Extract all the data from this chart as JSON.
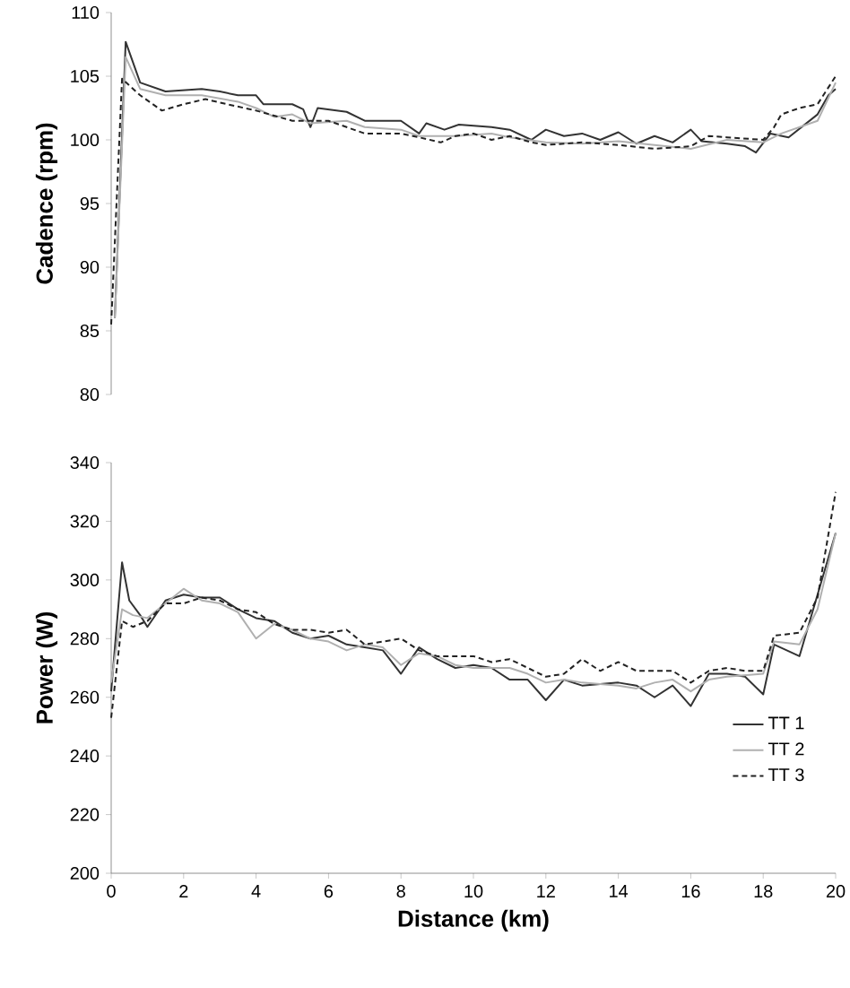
{
  "chart_data": [
    {
      "type": "line",
      "ylabel": "Cadence (rpm)",
      "xlim": [
        0,
        20
      ],
      "ylim": [
        80,
        110
      ],
      "yticks": [
        80,
        85,
        90,
        95,
        100,
        105,
        110
      ],
      "tick_labels": "y",
      "marker": "none",
      "series": [
        {
          "color": "#333333",
          "line_style": "solid",
          "x": [
            0.1,
            0.4,
            0.8,
            1.5,
            2.5,
            3,
            3.5,
            4,
            4.2,
            5,
            5.3,
            5.5,
            5.7,
            6.5,
            7,
            8,
            8.5,
            8.7,
            9.2,
            9.6,
            10.5,
            11,
            11.6,
            12,
            12.5,
            13,
            13.5,
            14,
            14.5,
            15,
            15.5,
            16,
            16.3,
            17,
            17.5,
            17.8,
            18.2,
            18.7,
            19.5,
            19.8,
            20
          ],
          "values": [
            86,
            107.7,
            104.5,
            103.8,
            104,
            103.8,
            103.5,
            103.5,
            102.8,
            102.8,
            102.4,
            101,
            102.5,
            102.2,
            101.5,
            101.5,
            100.5,
            101.3,
            100.8,
            101.2,
            101,
            100.8,
            100,
            100.8,
            100.3,
            100.5,
            100,
            100.6,
            99.7,
            100.3,
            99.8,
            100.8,
            99.9,
            99.7,
            99.5,
            99,
            100.5,
            100.2,
            102,
            103.5,
            104
          ]
        },
        {
          "color": "#b0b0b0",
          "line_style": "solid",
          "x": [
            0.1,
            0.4,
            0.8,
            1.5,
            2.5,
            3.5,
            4,
            4.5,
            5,
            5.5,
            6.5,
            7,
            8,
            8.5,
            9.5,
            10.5,
            11,
            12,
            13,
            14,
            15,
            16,
            17,
            18,
            18.5,
            19.5,
            20
          ],
          "values": [
            86,
            106.5,
            104,
            103.5,
            103.5,
            103,
            102.5,
            101.8,
            102,
            101.3,
            101.5,
            101,
            100.8,
            100.3,
            100.3,
            100.5,
            100.2,
            99.8,
            99.7,
            99.9,
            99.6,
            99.3,
            100,
            99.8,
            100.5,
            101.5,
            104.5
          ]
        },
        {
          "color": "#222222",
          "line_style": "dashed",
          "x": [
            0,
            0.3,
            0.8,
            1.4,
            2,
            2.6,
            3.2,
            4,
            5,
            6,
            7,
            8,
            8.5,
            9.1,
            9.5,
            10,
            10.5,
            11,
            11.6,
            12,
            13,
            14,
            15,
            16,
            16.5,
            17,
            18,
            18.3,
            18.5,
            19,
            19.5,
            20
          ],
          "values": [
            85.5,
            104.8,
            103.5,
            102.3,
            102.8,
            103.2,
            102.8,
            102.3,
            101.5,
            101.5,
            100.5,
            100.5,
            100.2,
            99.8,
            100.3,
            100.5,
            100,
            100.3,
            99.8,
            99.6,
            99.8,
            99.6,
            99.3,
            99.5,
            100.3,
            100.2,
            100,
            101,
            102,
            102.5,
            102.8,
            105
          ]
        }
      ]
    },
    {
      "type": "line",
      "xlabel": "Distance (km)",
      "ylabel": "Power (W)",
      "xlim": [
        0,
        20
      ],
      "ylim": [
        200,
        340
      ],
      "xticks": [
        0,
        2,
        4,
        6,
        8,
        10,
        12,
        14,
        16,
        18,
        20
      ],
      "yticks": [
        200,
        220,
        240,
        260,
        280,
        300,
        320,
        340
      ],
      "marker": "none",
      "legend": "bottom right",
      "series": [
        {
          "name": "TT 1",
          "color": "#333333",
          "line_style": "solid",
          "x": [
            0,
            0.3,
            0.5,
            0.8,
            1,
            1.5,
            2,
            2.5,
            3,
            3.5,
            4,
            4.5,
            5,
            5.5,
            6,
            6.5,
            7,
            7.5,
            8,
            8.5,
            9,
            9.5,
            10,
            10.5,
            11,
            11.5,
            12,
            12.5,
            13,
            14,
            14.5,
            15,
            15.5,
            16,
            16.5,
            17,
            17.5,
            18,
            18.3,
            19,
            19.5,
            20
          ],
          "values": [
            262,
            306,
            293,
            288,
            284,
            293,
            295,
            294,
            294,
            290,
            287,
            286,
            282,
            280,
            281,
            278,
            277,
            276,
            268,
            277,
            273,
            270,
            271,
            270,
            266,
            266,
            259,
            266,
            264,
            265,
            264,
            260,
            264,
            257,
            268,
            268,
            267,
            261,
            278,
            274,
            295,
            316
          ]
        },
        {
          "name": "TT 2",
          "color": "#b0b0b0",
          "line_style": "solid",
          "x": [
            0,
            0.3,
            0.6,
            1,
            1.5,
            2,
            2.5,
            3,
            3.5,
            4,
            4.5,
            5,
            5.5,
            6,
            6.5,
            7,
            7.5,
            8,
            8.5,
            9,
            9.5,
            10,
            10.5,
            11,
            11.5,
            12,
            12.5,
            13,
            14,
            14.5,
            15,
            15.5,
            16,
            16.5,
            17,
            18,
            18.3,
            19,
            19.5,
            20
          ],
          "values": [
            265,
            290,
            288,
            287,
            292,
            297,
            293,
            292,
            289,
            280,
            285,
            283,
            280,
            279,
            276,
            278,
            277,
            271,
            275,
            274,
            271,
            270,
            270,
            270,
            268,
            265,
            266,
            265,
            264,
            263,
            265,
            266,
            262,
            266,
            267,
            268,
            279,
            278,
            290,
            316
          ]
        },
        {
          "name": "TT 3",
          "color": "#222222",
          "line_style": "dashed",
          "x": [
            0,
            0.3,
            0.6,
            1,
            1.5,
            2,
            2.5,
            3,
            3.5,
            4,
            4.5,
            5,
            5.5,
            6,
            6.5,
            7,
            8,
            8.5,
            9,
            9.5,
            10,
            10.5,
            11,
            11.5,
            12,
            12.5,
            13,
            13.5,
            14,
            14.5,
            15,
            15.5,
            16,
            16.5,
            17,
            17.5,
            18,
            18.3,
            19,
            19.5,
            20
          ],
          "values": [
            253,
            286,
            284,
            286,
            292,
            292,
            294,
            293,
            290,
            289,
            285,
            283,
            283,
            282,
            283,
            278,
            280,
            276,
            274,
            274,
            274,
            272,
            273,
            270,
            267,
            268,
            273,
            269,
            272,
            269,
            269,
            269,
            265,
            269,
            270,
            269,
            269,
            281,
            282,
            294,
            330
          ]
        }
      ]
    }
  ]
}
